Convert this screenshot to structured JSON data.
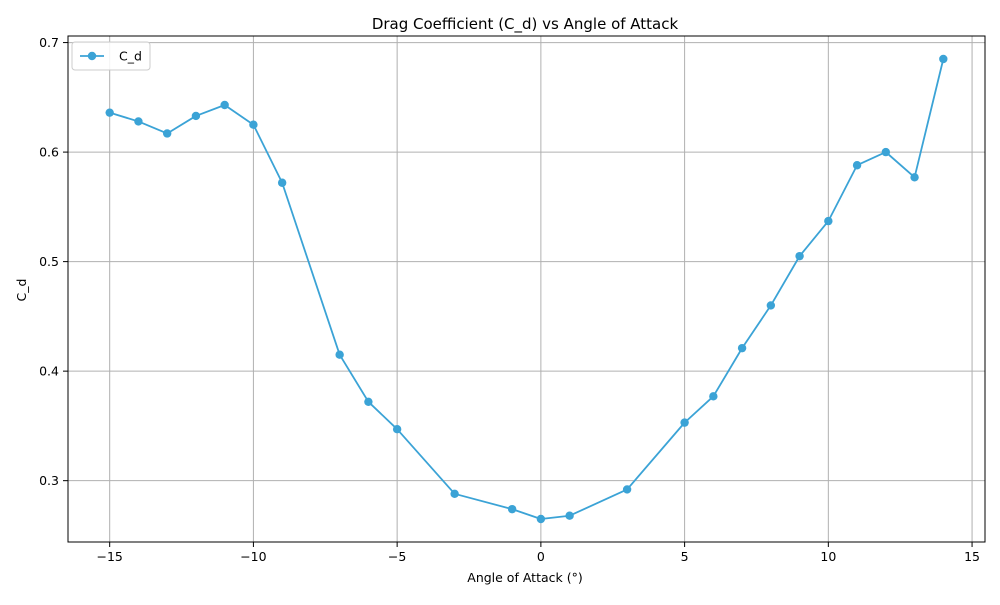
{
  "chart_data": {
    "type": "line",
    "title": "Drag Coefficient (C_d) vs Angle of Attack",
    "xlabel": "Angle of Attack (°)",
    "ylabel": "C_d",
    "xlim": [
      -16.45,
      15.45
    ],
    "ylim": [
      0.244,
      0.706
    ],
    "xticks": [
      -15,
      -10,
      -5,
      0,
      5,
      10,
      15
    ],
    "xtick_labels": [
      "−15",
      "−10",
      "−5",
      "0",
      "5",
      "10",
      "15"
    ],
    "yticks": [
      0.3,
      0.4,
      0.5,
      0.6,
      0.7
    ],
    "ytick_labels": [
      "0.3",
      "0.4",
      "0.5",
      "0.6",
      "0.7"
    ],
    "grid": true,
    "legend_position": "top-left",
    "series": [
      {
        "name": "C_d",
        "color": "#3ba3d6",
        "marker": "circle",
        "x": [
          -15,
          -14,
          -13,
          -12,
          -11,
          -10,
          -9,
          -7,
          -6,
          -5,
          -3,
          -1,
          0,
          1,
          3,
          5,
          6,
          7,
          8,
          9,
          10,
          11,
          12,
          13,
          14
        ],
        "y": [
          0.636,
          0.628,
          0.617,
          0.633,
          0.643,
          0.625,
          0.572,
          0.415,
          0.372,
          0.347,
          0.288,
          0.274,
          0.265,
          0.268,
          0.292,
          0.353,
          0.377,
          0.421,
          0.46,
          0.505,
          0.537,
          0.588,
          0.6,
          0.577,
          0.685
        ]
      }
    ]
  }
}
